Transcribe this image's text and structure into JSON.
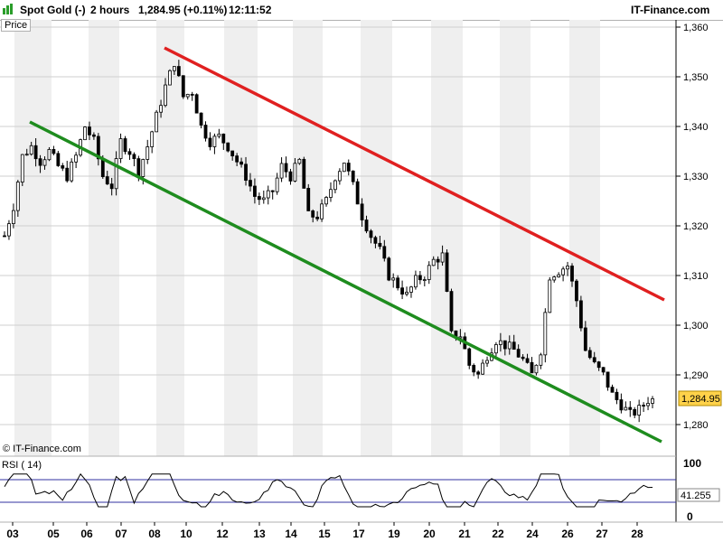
{
  "header": {
    "instrument": "Spot Gold (-)",
    "timeframe": "2 hours",
    "quote": "1,284.95 (+0.11%)",
    "time": "12:11:52",
    "brand": "IT-Finance.com"
  },
  "panels": {
    "price_label": "Price",
    "rsi_label": "RSI ( 14)",
    "copyright": "© IT-Finance.com"
  },
  "colors": {
    "resistance": "#e02020",
    "support": "#1e8c1e",
    "rsi_line": "#000000",
    "rsi_band": "#3030a0",
    "last_price_bg": "#ffd24a",
    "band_shade": "#efefef"
  },
  "chart_data": [
    {
      "type": "candlestick",
      "x_ticks": [
        "03",
        "05",
        "06",
        "07",
        "08",
        "10",
        "12",
        "13",
        "14",
        "15",
        "17",
        "19",
        "20",
        "21",
        "22",
        "24",
        "26",
        "27",
        "28"
      ],
      "y_ticks": [
        "1,280",
        "1,290",
        "1,300",
        "1,310",
        "1,320",
        "1,330",
        "1,340",
        "1,350",
        "1,360"
      ],
      "ylim": [
        1275,
        1362
      ],
      "last_price": "1,284.95",
      "close_path": [
        [
          0,
          1318
        ],
        [
          2,
          1324
        ],
        [
          4,
          1334
        ],
        [
          6,
          1336
        ],
        [
          8,
          1333
        ],
        [
          10,
          1335
        ],
        [
          12,
          1332
        ],
        [
          14,
          1330
        ],
        [
          16,
          1334
        ],
        [
          18,
          1340
        ],
        [
          20,
          1337
        ],
        [
          22,
          1330
        ],
        [
          24,
          1328
        ],
        [
          26,
          1337
        ],
        [
          28,
          1335
        ],
        [
          30,
          1331
        ],
        [
          32,
          1336
        ],
        [
          34,
          1342
        ],
        [
          36,
          1348
        ],
        [
          38,
          1353
        ],
        [
          40,
          1346
        ],
        [
          42,
          1347
        ],
        [
          44,
          1340
        ],
        [
          46,
          1337
        ],
        [
          48,
          1338
        ],
        [
          50,
          1336
        ],
        [
          52,
          1333
        ],
        [
          54,
          1330
        ],
        [
          56,
          1326
        ],
        [
          58,
          1325
        ],
        [
          60,
          1327
        ],
        [
          62,
          1332
        ],
        [
          64,
          1330
        ],
        [
          66,
          1333
        ],
        [
          68,
          1322
        ],
        [
          70,
          1322
        ],
        [
          72,
          1325
        ],
        [
          74,
          1330
        ],
        [
          76,
          1333
        ],
        [
          78,
          1328
        ],
        [
          80,
          1322
        ],
        [
          82,
          1318
        ],
        [
          84,
          1315
        ],
        [
          86,
          1310
        ],
        [
          88,
          1308
        ],
        [
          90,
          1306
        ],
        [
          92,
          1309
        ],
        [
          94,
          1310
        ],
        [
          96,
          1313
        ],
        [
          98,
          1314
        ],
        [
          100,
          1298
        ],
        [
          102,
          1298
        ],
        [
          104,
          1292
        ],
        [
          106,
          1290
        ],
        [
          108,
          1294
        ],
        [
          110,
          1297
        ],
        [
          112,
          1296
        ],
        [
          114,
          1295
        ],
        [
          116,
          1293
        ],
        [
          118,
          1290
        ],
        [
          120,
          1295
        ],
        [
          122,
          1310
        ],
        [
          124,
          1311
        ],
        [
          126,
          1312
        ],
        [
          128,
          1305
        ],
        [
          130,
          1295
        ],
        [
          132,
          1292
        ],
        [
          134,
          1290
        ],
        [
          136,
          1286
        ],
        [
          138,
          1284
        ],
        [
          140,
          1282
        ],
        [
          142,
          1283
        ],
        [
          144,
          1285
        ]
      ]
    },
    {
      "type": "line",
      "name": "RSI ( 14)",
      "y_ticks": [
        "100",
        "0"
      ],
      "last_value": "41.255",
      "overbought": 70,
      "oversold": 30
    }
  ]
}
